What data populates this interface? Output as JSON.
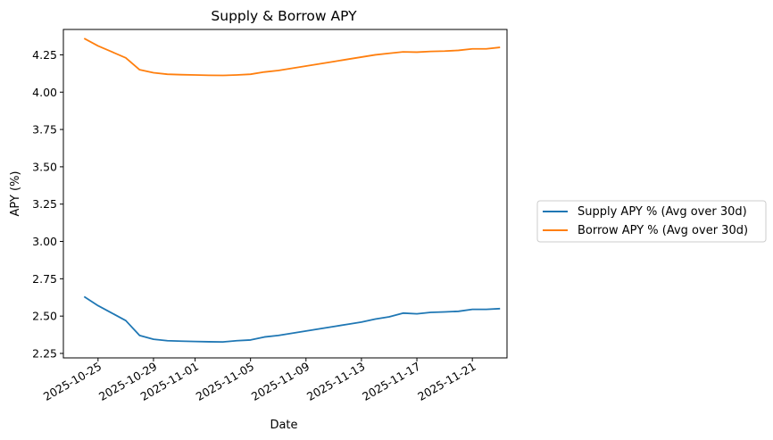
{
  "chart_data": {
    "type": "line",
    "title": "Supply & Borrow APY",
    "xlabel": "Date",
    "ylabel": "APY (%)",
    "xlim": [
      "2025-10-22T12:00",
      "2025-11-23T12:00"
    ],
    "ylim": [
      2.22,
      4.42
    ],
    "x_ticks": [
      "2025-10-25",
      "2025-10-29",
      "2025-11-01",
      "2025-11-05",
      "2025-11-09",
      "2025-11-13",
      "2025-11-17",
      "2025-11-21"
    ],
    "y_ticks": [
      "2.25",
      "2.50",
      "2.75",
      "3.00",
      "3.25",
      "3.50",
      "3.75",
      "4.00",
      "4.25"
    ],
    "legend_position": "right (outside plot)",
    "grid": false,
    "x": [
      "2025-10-24",
      "2025-10-25",
      "2025-10-26",
      "2025-10-27",
      "2025-10-28",
      "2025-10-29",
      "2025-10-30",
      "2025-10-31",
      "2025-11-01",
      "2025-11-02",
      "2025-11-03",
      "2025-11-04",
      "2025-11-05",
      "2025-11-06",
      "2025-11-07",
      "2025-11-08",
      "2025-11-09",
      "2025-11-10",
      "2025-11-11",
      "2025-11-12",
      "2025-11-13",
      "2025-11-14",
      "2025-11-15",
      "2025-11-16",
      "2025-11-17",
      "2025-11-18",
      "2025-11-19",
      "2025-11-20",
      "2025-11-21",
      "2025-11-22",
      "2025-11-23"
    ],
    "series": [
      {
        "name": "Supply APY % (Avg over 30d)",
        "color": "#1f77b4",
        "values": [
          2.63,
          2.57,
          2.52,
          2.47,
          2.37,
          2.345,
          2.335,
          2.332,
          2.33,
          2.328,
          2.327,
          2.335,
          2.34,
          2.36,
          2.37,
          2.385,
          2.4,
          2.415,
          2.43,
          2.445,
          2.46,
          2.48,
          2.495,
          2.52,
          2.515,
          2.525,
          2.528,
          2.532,
          2.545,
          2.545,
          2.55
        ]
      },
      {
        "name": "Borrow APY % (Avg over 30d)",
        "color": "#ff7f0e",
        "values": [
          4.36,
          4.31,
          4.27,
          4.23,
          4.15,
          4.13,
          4.12,
          4.117,
          4.115,
          4.113,
          4.112,
          4.115,
          4.12,
          4.135,
          4.145,
          4.16,
          4.175,
          4.19,
          4.205,
          4.22,
          4.235,
          4.25,
          4.26,
          4.27,
          4.268,
          4.273,
          4.275,
          4.28,
          4.29,
          4.29,
          4.3
        ]
      }
    ]
  }
}
